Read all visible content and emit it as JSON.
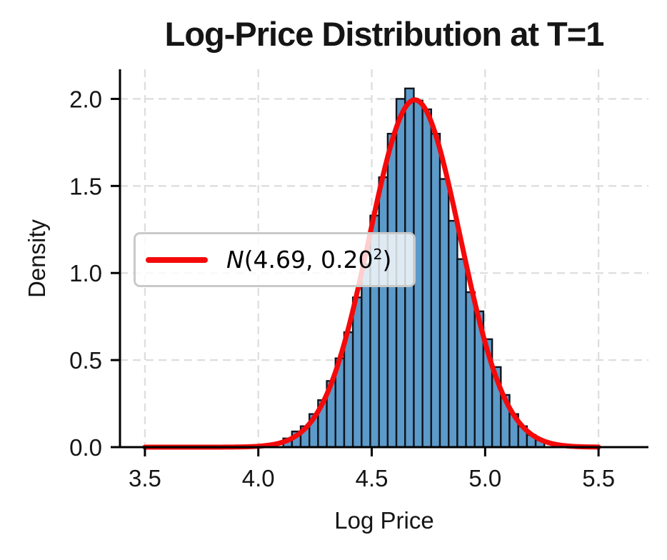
{
  "chart_data": {
    "type": "bar",
    "subtype": "histogram_with_density_curve",
    "title": "Log-Price Distribution at T=1",
    "xlabel": "Log Price",
    "ylabel": "Density",
    "xlim": [
      3.39,
      5.72
    ],
    "ylim": [
      0,
      2.17
    ],
    "grid": {
      "visible": true,
      "style": "dashed",
      "color": "#dedede"
    },
    "x_ticks": {
      "values": [
        3.5,
        4.0,
        4.5,
        5.0,
        5.5
      ],
      "labels": [
        "3.5",
        "4.0",
        "4.5",
        "5.0",
        "5.5"
      ]
    },
    "y_ticks": {
      "values": [
        0.0,
        0.5,
        1.0,
        1.5,
        2.0
      ],
      "labels": [
        "0.0",
        "0.5",
        "1.0",
        "1.5",
        "2.0"
      ]
    },
    "histogram": {
      "bin_start": 4.11,
      "bin_width": 0.03837,
      "n_bins": 30,
      "heights": [
        0.05,
        0.09,
        0.12,
        0.19,
        0.27,
        0.38,
        0.51,
        0.66,
        0.86,
        1.05,
        1.33,
        1.55,
        1.8,
        2.0,
        2.06,
        1.99,
        1.94,
        1.8,
        1.54,
        1.3,
        1.08,
        0.89,
        0.78,
        0.62,
        0.46,
        0.3,
        0.19,
        0.12,
        0.07,
        0.04
      ],
      "fill_color": "#5c9ac9",
      "edge_color": "#10141c"
    },
    "curve": {
      "distribution": "normal",
      "mu": 4.69,
      "sigma": 0.2,
      "peak_density": 1.995,
      "x_start": 3.5,
      "x_end": 5.5,
      "color": "#f40a0a",
      "label": "N(4.69, 0.20²)"
    },
    "legend": {
      "position": "center-left",
      "variable": "N",
      "args": "(4.69, 0.20",
      "sup": "2",
      "close": ")"
    },
    "colors": {
      "text": "#151515",
      "spine": "#000000",
      "grid": "#dedede",
      "legend_border": "#c9c9c9"
    }
  }
}
